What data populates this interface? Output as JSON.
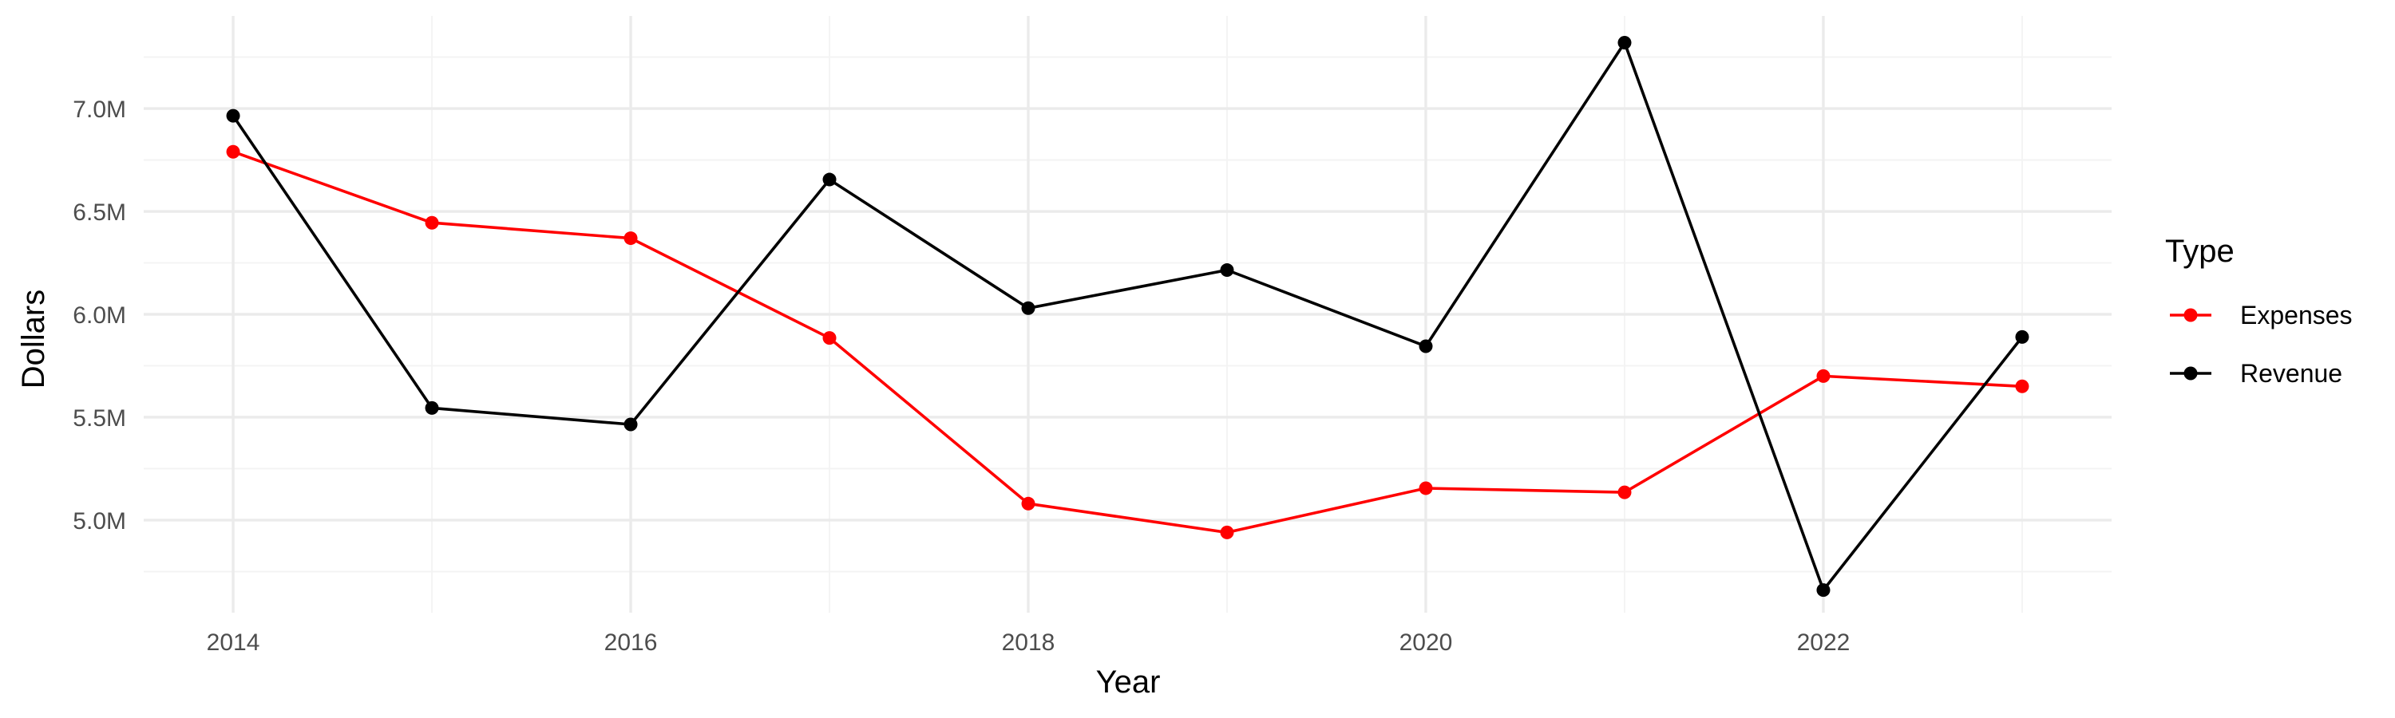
{
  "chart_data": {
    "type": "line",
    "xlabel": "Year",
    "ylabel": "Dollars",
    "x": [
      2014,
      2015,
      2016,
      2017,
      2018,
      2019,
      2020,
      2021,
      2022,
      2023
    ],
    "x_ticks": [
      2014,
      2016,
      2018,
      2020,
      2022
    ],
    "y_ticks": [
      5000000,
      5500000,
      6000000,
      6500000,
      7000000
    ],
    "y_tick_labels": [
      "5.0M",
      "5.5M",
      "6.0M",
      "6.5M",
      "7.0M"
    ],
    "xlim": [
      2013.55,
      2023.45
    ],
    "ylim": [
      4550000,
      7450000
    ],
    "grid": true,
    "legend": {
      "title": "Type",
      "position": "right"
    },
    "series": [
      {
        "name": "Expenses",
        "color": "#ff0000",
        "values": [
          6790000,
          6445000,
          6370000,
          5885000,
          5080000,
          4940000,
          5155000,
          5135000,
          5700000,
          5650000
        ]
      },
      {
        "name": "Revenue",
        "color": "#000000",
        "values": [
          6965000,
          5545000,
          5465000,
          6655000,
          6030000,
          6215000,
          5845000,
          7320000,
          4660000,
          5890000
        ]
      }
    ]
  }
}
